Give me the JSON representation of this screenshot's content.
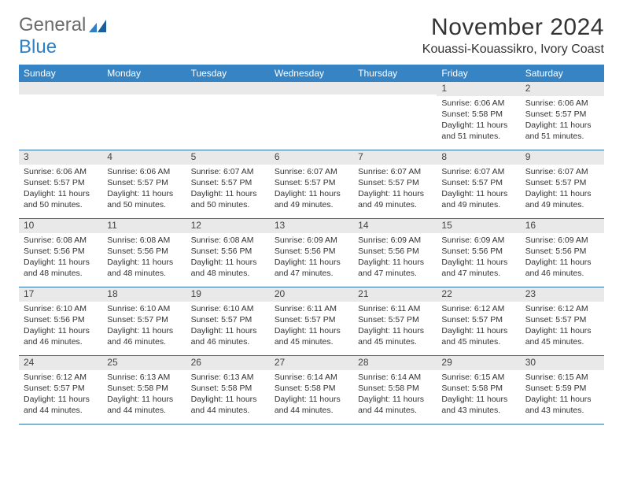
{
  "logo": {
    "word1": "General",
    "word2": "Blue"
  },
  "title": {
    "month": "November 2024",
    "location": "Kouassi-Kouassikro, Ivory Coast"
  },
  "colors": {
    "header_bg": "#3784c5",
    "header_text": "#ffffff",
    "daynum_bg": "#e9e9e9",
    "border": "#2f6fa8",
    "logo_gray": "#6b6b6b",
    "logo_blue": "#2f7fc4",
    "text": "#333333",
    "background": "#ffffff"
  },
  "dow": [
    "Sunday",
    "Monday",
    "Tuesday",
    "Wednesday",
    "Thursday",
    "Friday",
    "Saturday"
  ],
  "weeks": [
    [
      {
        "n": "",
        "sr": "",
        "ss": "",
        "dl": ""
      },
      {
        "n": "",
        "sr": "",
        "ss": "",
        "dl": ""
      },
      {
        "n": "",
        "sr": "",
        "ss": "",
        "dl": ""
      },
      {
        "n": "",
        "sr": "",
        "ss": "",
        "dl": ""
      },
      {
        "n": "",
        "sr": "",
        "ss": "",
        "dl": ""
      },
      {
        "n": "1",
        "sr": "Sunrise: 6:06 AM",
        "ss": "Sunset: 5:58 PM",
        "dl": "Daylight: 11 hours and 51 minutes."
      },
      {
        "n": "2",
        "sr": "Sunrise: 6:06 AM",
        "ss": "Sunset: 5:57 PM",
        "dl": "Daylight: 11 hours and 51 minutes."
      }
    ],
    [
      {
        "n": "3",
        "sr": "Sunrise: 6:06 AM",
        "ss": "Sunset: 5:57 PM",
        "dl": "Daylight: 11 hours and 50 minutes."
      },
      {
        "n": "4",
        "sr": "Sunrise: 6:06 AM",
        "ss": "Sunset: 5:57 PM",
        "dl": "Daylight: 11 hours and 50 minutes."
      },
      {
        "n": "5",
        "sr": "Sunrise: 6:07 AM",
        "ss": "Sunset: 5:57 PM",
        "dl": "Daylight: 11 hours and 50 minutes."
      },
      {
        "n": "6",
        "sr": "Sunrise: 6:07 AM",
        "ss": "Sunset: 5:57 PM",
        "dl": "Daylight: 11 hours and 49 minutes."
      },
      {
        "n": "7",
        "sr": "Sunrise: 6:07 AM",
        "ss": "Sunset: 5:57 PM",
        "dl": "Daylight: 11 hours and 49 minutes."
      },
      {
        "n": "8",
        "sr": "Sunrise: 6:07 AM",
        "ss": "Sunset: 5:57 PM",
        "dl": "Daylight: 11 hours and 49 minutes."
      },
      {
        "n": "9",
        "sr": "Sunrise: 6:07 AM",
        "ss": "Sunset: 5:57 PM",
        "dl": "Daylight: 11 hours and 49 minutes."
      }
    ],
    [
      {
        "n": "10",
        "sr": "Sunrise: 6:08 AM",
        "ss": "Sunset: 5:56 PM",
        "dl": "Daylight: 11 hours and 48 minutes."
      },
      {
        "n": "11",
        "sr": "Sunrise: 6:08 AM",
        "ss": "Sunset: 5:56 PM",
        "dl": "Daylight: 11 hours and 48 minutes."
      },
      {
        "n": "12",
        "sr": "Sunrise: 6:08 AM",
        "ss": "Sunset: 5:56 PM",
        "dl": "Daylight: 11 hours and 48 minutes."
      },
      {
        "n": "13",
        "sr": "Sunrise: 6:09 AM",
        "ss": "Sunset: 5:56 PM",
        "dl": "Daylight: 11 hours and 47 minutes."
      },
      {
        "n": "14",
        "sr": "Sunrise: 6:09 AM",
        "ss": "Sunset: 5:56 PM",
        "dl": "Daylight: 11 hours and 47 minutes."
      },
      {
        "n": "15",
        "sr": "Sunrise: 6:09 AM",
        "ss": "Sunset: 5:56 PM",
        "dl": "Daylight: 11 hours and 47 minutes."
      },
      {
        "n": "16",
        "sr": "Sunrise: 6:09 AM",
        "ss": "Sunset: 5:56 PM",
        "dl": "Daylight: 11 hours and 46 minutes."
      }
    ],
    [
      {
        "n": "17",
        "sr": "Sunrise: 6:10 AM",
        "ss": "Sunset: 5:56 PM",
        "dl": "Daylight: 11 hours and 46 minutes."
      },
      {
        "n": "18",
        "sr": "Sunrise: 6:10 AM",
        "ss": "Sunset: 5:57 PM",
        "dl": "Daylight: 11 hours and 46 minutes."
      },
      {
        "n": "19",
        "sr": "Sunrise: 6:10 AM",
        "ss": "Sunset: 5:57 PM",
        "dl": "Daylight: 11 hours and 46 minutes."
      },
      {
        "n": "20",
        "sr": "Sunrise: 6:11 AM",
        "ss": "Sunset: 5:57 PM",
        "dl": "Daylight: 11 hours and 45 minutes."
      },
      {
        "n": "21",
        "sr": "Sunrise: 6:11 AM",
        "ss": "Sunset: 5:57 PM",
        "dl": "Daylight: 11 hours and 45 minutes."
      },
      {
        "n": "22",
        "sr": "Sunrise: 6:12 AM",
        "ss": "Sunset: 5:57 PM",
        "dl": "Daylight: 11 hours and 45 minutes."
      },
      {
        "n": "23",
        "sr": "Sunrise: 6:12 AM",
        "ss": "Sunset: 5:57 PM",
        "dl": "Daylight: 11 hours and 45 minutes."
      }
    ],
    [
      {
        "n": "24",
        "sr": "Sunrise: 6:12 AM",
        "ss": "Sunset: 5:57 PM",
        "dl": "Daylight: 11 hours and 44 minutes."
      },
      {
        "n": "25",
        "sr": "Sunrise: 6:13 AM",
        "ss": "Sunset: 5:58 PM",
        "dl": "Daylight: 11 hours and 44 minutes."
      },
      {
        "n": "26",
        "sr": "Sunrise: 6:13 AM",
        "ss": "Sunset: 5:58 PM",
        "dl": "Daylight: 11 hours and 44 minutes."
      },
      {
        "n": "27",
        "sr": "Sunrise: 6:14 AM",
        "ss": "Sunset: 5:58 PM",
        "dl": "Daylight: 11 hours and 44 minutes."
      },
      {
        "n": "28",
        "sr": "Sunrise: 6:14 AM",
        "ss": "Sunset: 5:58 PM",
        "dl": "Daylight: 11 hours and 44 minutes."
      },
      {
        "n": "29",
        "sr": "Sunrise: 6:15 AM",
        "ss": "Sunset: 5:58 PM",
        "dl": "Daylight: 11 hours and 43 minutes."
      },
      {
        "n": "30",
        "sr": "Sunrise: 6:15 AM",
        "ss": "Sunset: 5:59 PM",
        "dl": "Daylight: 11 hours and 43 minutes."
      }
    ]
  ]
}
